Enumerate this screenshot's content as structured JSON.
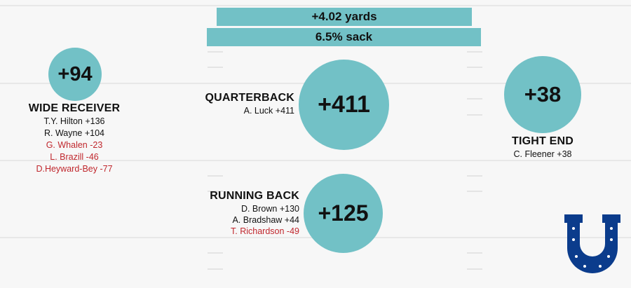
{
  "colors": {
    "circle": "#72c1c6",
    "negative": "#c0272d",
    "logo": "#0b3c8c"
  },
  "header": {
    "yards_label": "+4.02 yards",
    "sack_label": "6.5% sack"
  },
  "wide_receiver": {
    "value": "+94",
    "title": "WIDE RECEIVER",
    "players": [
      {
        "text": "T.Y. Hilton +136",
        "negative": false
      },
      {
        "text": "R. Wayne +104",
        "negative": false
      },
      {
        "text": "G. Whalen -23",
        "negative": true
      },
      {
        "text": "L. Brazill -46",
        "negative": true
      },
      {
        "text": "D.Heyward-Bey -77",
        "negative": true
      }
    ]
  },
  "quarterback": {
    "value": "+411",
    "title": "QUARTERBACK",
    "players": [
      {
        "text": "A. Luck +411",
        "negative": false
      }
    ]
  },
  "tight_end": {
    "value": "+38",
    "title": "TIGHT END",
    "players": [
      {
        "text": "C. Fleener +38",
        "negative": false
      }
    ]
  },
  "running_back": {
    "value": "+125",
    "title": "RUNNING BACK",
    "players": [
      {
        "text": "D. Brown +130",
        "negative": false
      },
      {
        "text": "A. Bradshaw +44",
        "negative": false
      },
      {
        "text": "T. Richardson -49",
        "negative": true
      }
    ]
  },
  "logo": {
    "icon": "horseshoe-icon"
  }
}
